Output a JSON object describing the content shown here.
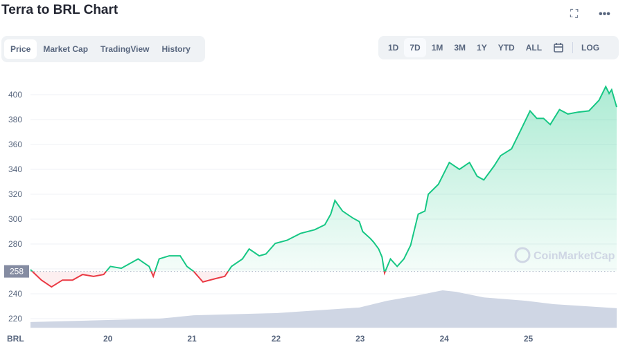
{
  "header": {
    "title": "Terra to BRL Chart",
    "fullscreen_icon": "fullscreen-icon",
    "more_icon": "more-horizontal-icon"
  },
  "tabs": [
    {
      "label": "Price",
      "active": true
    },
    {
      "label": "Market Cap"
    },
    {
      "label": "TradingView"
    },
    {
      "label": "History"
    }
  ],
  "ranges": [
    {
      "label": "1D"
    },
    {
      "label": "7D",
      "active": true
    },
    {
      "label": "1M"
    },
    {
      "label": "3M"
    },
    {
      "label": "1Y"
    },
    {
      "label": "YTD"
    },
    {
      "label": "ALL"
    }
  ],
  "calendar_icon": "calendar-icon",
  "log_label": "LOG",
  "watermark": "CoinMarketCap",
  "chart_data": {
    "type": "area",
    "currency_label": "BRL",
    "reference_value": 258,
    "reference_label": "258",
    "ylim": [
      210,
      412
    ],
    "yticks": [
      220,
      240,
      260,
      280,
      300,
      320,
      340,
      360,
      380,
      400
    ],
    "ytick_labels": [
      "220",
      "240",
      "",
      "280",
      "300",
      "320",
      "340",
      "360",
      "380",
      "400"
    ],
    "xlim": [
      19.08,
      26.05
    ],
    "xticks": [
      20,
      21,
      22,
      23,
      24,
      25
    ],
    "xtick_labels": [
      "20",
      "21",
      "22",
      "23",
      "24",
      "25"
    ],
    "colors": {
      "up": "#16c784",
      "down": "#ea3943",
      "volume": "#cfd6e4"
    },
    "grid": true,
    "x": [
      19.08,
      19.21,
      19.33,
      19.46,
      19.58,
      19.7,
      19.83,
      19.95,
      20.03,
      20.16,
      20.28,
      20.36,
      20.49,
      20.54,
      20.61,
      20.73,
      20.86,
      20.94,
      21.02,
      21.13,
      21.27,
      21.39,
      21.47,
      21.6,
      21.68,
      21.8,
      21.88,
      21.99,
      22.13,
      22.29,
      22.46,
      22.58,
      22.65,
      22.7,
      22.79,
      22.91,
      22.99,
      23.03,
      23.12,
      23.16,
      23.22,
      23.26,
      23.29,
      23.36,
      23.44,
      23.52,
      23.6,
      23.69,
      23.77,
      23.81,
      23.93,
      24.06,
      24.18,
      24.3,
      24.39,
      24.47,
      24.59,
      24.67,
      24.8,
      24.92,
      25.02,
      25.1,
      25.18,
      25.26,
      25.37,
      25.47,
      25.59,
      25.72,
      25.84,
      25.92,
      25.96,
      25.99,
      26.05
    ],
    "price": [
      259.4,
      251,
      245.5,
      251,
      251,
      255.5,
      254,
      255.5,
      262,
      260.5,
      265,
      268,
      262,
      254,
      268,
      270.5,
      270.5,
      262,
      258,
      249.5,
      252,
      254,
      262,
      268,
      276,
      270.5,
      272,
      280.5,
      283,
      288.5,
      291.5,
      295.5,
      304,
      315,
      306.5,
      301,
      298,
      290,
      284.5,
      281.5,
      276,
      269.5,
      256.7,
      268,
      262,
      268,
      279,
      304,
      306.5,
      320,
      328,
      345.5,
      340,
      345.5,
      334.5,
      331.5,
      342.5,
      351,
      356.5,
      373,
      387,
      381,
      381,
      376,
      388,
      384.5,
      386,
      387,
      395.5,
      406.5,
      401,
      404,
      390
    ],
    "volume_x": [
      19.08,
      20.61,
      21.02,
      22.0,
      22.99,
      23.32,
      23.65,
      23.98,
      24.14,
      24.47,
      24.97,
      25.3,
      26.05
    ],
    "volume_relative": [
      0.15,
      0.24,
      0.33,
      0.39,
      0.54,
      0.72,
      0.85,
      1.0,
      0.96,
      0.81,
      0.72,
      0.63,
      0.52
    ]
  }
}
